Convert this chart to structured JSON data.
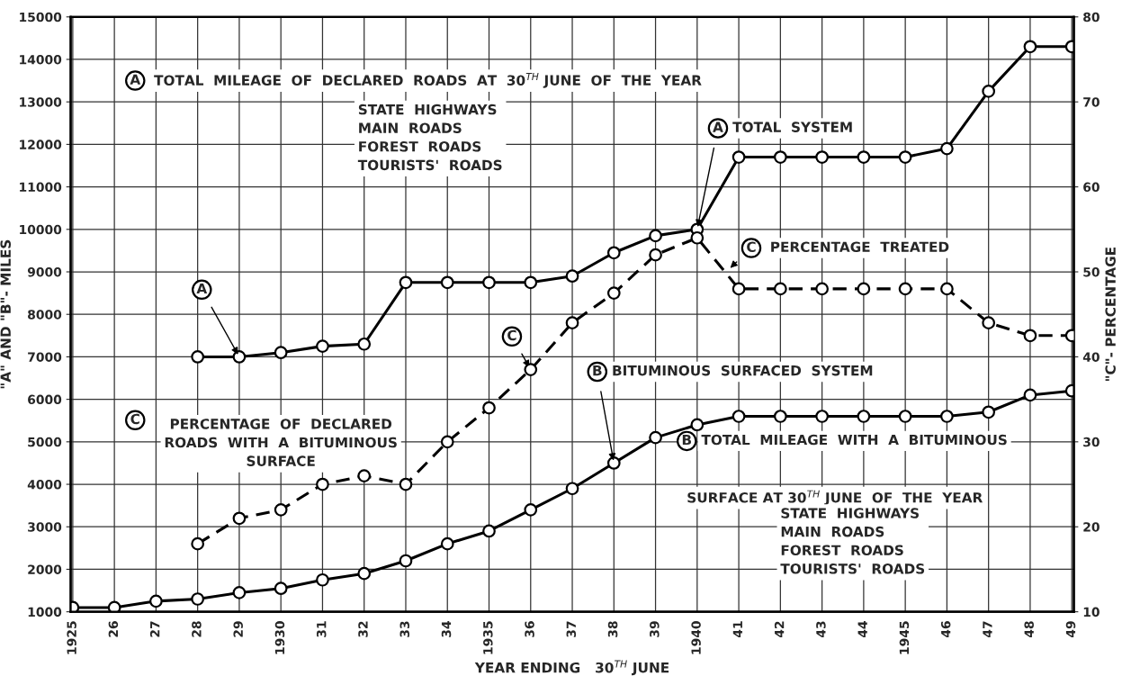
{
  "chart_data": {
    "type": "line",
    "xlabel": "YEAR ENDING   30$^{TH}$ JUNE",
    "ylabel": "\"A\" AND \"B\"- MILES",
    "y2label": "\"C\"- PERCENTAGE",
    "categories": [
      "1925",
      "26",
      "27",
      "28",
      "29",
      "1930",
      "31",
      "32",
      "33",
      "34",
      "1935",
      "36",
      "37",
      "38",
      "39",
      "1940",
      "41",
      "42",
      "43",
      "44",
      "1945",
      "46",
      "47",
      "48",
      "49"
    ],
    "series": [
      {
        "color": "#000000",
        "line_style": "solid",
        "values": [
          null,
          null,
          null,
          7000,
          7000,
          7100,
          7250,
          7300,
          8750,
          8750,
          8750,
          8750,
          8900,
          9450,
          9850,
          10000,
          11700,
          11700,
          11700,
          11700,
          11700,
          11900,
          13250,
          14300,
          14300
        ]
      },
      {
        "color": "#000000",
        "line_style": "solid",
        "values": [
          1100,
          1100,
          1250,
          1300,
          1450,
          1550,
          1750,
          1900,
          2200,
          2600,
          2900,
          3400,
          3900,
          4500,
          5100,
          5400,
          5600,
          5600,
          5600,
          5600,
          5600,
          5600,
          5700,
          6100,
          6200
        ]
      },
      {
        "color": "#000000",
        "line_style": "dashed",
        "axis": "y2",
        "values": [
          null,
          null,
          null,
          18,
          21,
          22,
          25,
          26,
          25,
          30,
          34,
          38.5,
          44,
          47.5,
          52,
          54,
          48,
          48,
          48,
          48,
          48,
          48,
          44,
          42.5,
          42.5
        ]
      }
    ],
    "ylim": [
      1000,
      15000
    ],
    "yticks": [
      1000,
      2000,
      3000,
      4000,
      5000,
      6000,
      7000,
      8000,
      9000,
      10000,
      11000,
      12000,
      13000,
      14000,
      15000
    ],
    "y2lim": [
      10,
      80
    ],
    "y2ticks": [
      10,
      20,
      30,
      40,
      50,
      60,
      70,
      80
    ],
    "grid": true,
    "marker": "circle",
    "annotations": [
      "A",
      "TOTAL  MILEAGE  OF  DECLARED  ROADS  AT  30$^{TH}$ JUNE  OF  THE  YEAR",
      "STATE  HIGHWAYS\nMAIN  ROADS\nFOREST  ROADS\nTOURISTS'  ROADS",
      {
        "text": "A",
        "x": "1940",
        "y": 10000
      },
      "TOTAL  SYSTEM",
      "C",
      "PERCENTAGE  TREATED",
      {
        "text": "A",
        "x": "29",
        "y": 7000
      },
      {
        "text": "C",
        "x": "36",
        "y": 6700
      },
      {
        "text": "B",
        "x": "38",
        "y": 4500
      },
      "BITUMINOUS  SURFACED  SYSTEM",
      "C",
      "PERCENTAGE  OF  DECLARED\nROADS  WITH  A  BITUMINOUS\nSURFACE",
      "B",
      "TOTAL  MILEAGE  WITH  A  BITUMINOUS",
      "SURFACE AT 30$^{TH}$ JUNE  OF  THE  YEAR",
      "STATE  HIGHWAYS\nMAIN  ROADS\nFOREST  ROADS\nTOURISTS'  ROADS"
    ]
  }
}
